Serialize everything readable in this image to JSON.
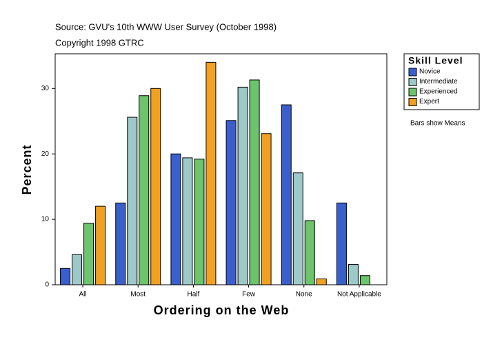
{
  "chart_data": {
    "type": "bar",
    "title": "Source: GVU's 10th WWW User Survey (October 1998)",
    "subtitle": "Copyright 1998 GTRC",
    "x_label": "Ordering on the Web",
    "y_label": "Percent",
    "legend_title": "Skill Level",
    "annotation": "Bars show Means",
    "categories": [
      "All",
      "Most",
      "Half",
      "Few",
      "None",
      "Not Applicable"
    ],
    "series": [
      {
        "name": "Novice",
        "color": "#3a5fcd",
        "values": [
          2.5,
          12.5,
          20.0,
          25.1,
          27.5,
          12.5
        ]
      },
      {
        "name": "Intermediate",
        "color": "#9ec9c9",
        "values": [
          4.6,
          25.6,
          19.4,
          30.2,
          17.1,
          3.1
        ]
      },
      {
        "name": "Experienced",
        "color": "#6cc46c",
        "values": [
          9.4,
          28.9,
          19.2,
          31.3,
          9.8,
          1.4
        ]
      },
      {
        "name": "Expert",
        "color": "#f2a020",
        "values": [
          12.0,
          30.0,
          34.0,
          23.1,
          0.9,
          null
        ]
      }
    ],
    "ylim": [
      0,
      35.3
    ],
    "yticks": [
      0,
      10,
      20,
      30
    ],
    "grid": false,
    "legend": "right"
  }
}
